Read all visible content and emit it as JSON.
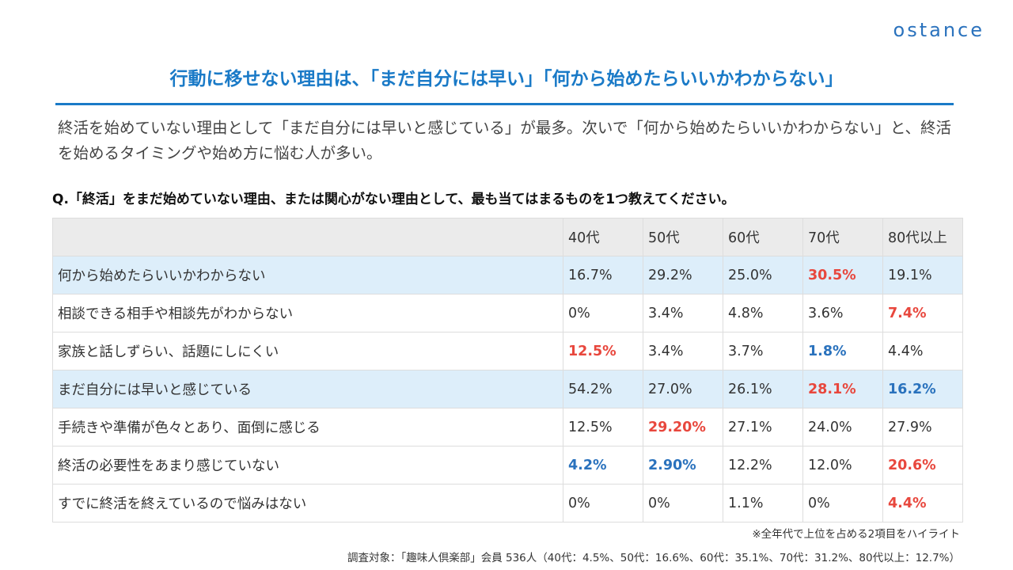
{
  "logo": "ostance",
  "title": "行動に移せない理由は、「まだ自分には早い」「何から始めたらいいかわからない」",
  "lead": "終活を始めていない理由として「まだ自分には早いと感じている」が最多。次いで「何から始めたらいいかわからない」と、終活を始めるタイミングや始め方に悩む人が多い。",
  "question": "Q.「終活」をまだ始めていない理由、または関心がない理由として、最も当てはまるものを1つ教えてください。",
  "table": {
    "headers": [
      "40代",
      "50代",
      "60代",
      "70代",
      "80代以上"
    ],
    "rows": [
      {
        "label": "何から始めたらいいかわからない",
        "cells": [
          "16.7%",
          "29.2%",
          "25.0%",
          "30.5%",
          "19.1%"
        ],
        "highlight": true,
        "cell_colors": [
          null,
          null,
          null,
          "#e8473d",
          null
        ]
      },
      {
        "label": "相談できる相手や相談先がわからない",
        "cells": [
          "0%",
          "3.4%",
          "4.8%",
          "3.6%",
          "7.4%"
        ],
        "highlight": false,
        "cell_colors": [
          null,
          null,
          null,
          null,
          "#e8473d"
        ]
      },
      {
        "label": "家族と話しずらい、話題にしにくい",
        "cells": [
          "12.5%",
          "3.4%",
          "3.7%",
          "1.8%",
          "4.4%"
        ],
        "highlight": false,
        "cell_colors": [
          "#e8473d",
          null,
          null,
          "#2a72bd",
          null
        ]
      },
      {
        "label": "まだ自分には早いと感じている",
        "cells": [
          "54.2%",
          "27.0%",
          "26.1%",
          "28.1%",
          "16.2%"
        ],
        "highlight": true,
        "cell_colors": [
          null,
          null,
          null,
          "#e8473d",
          "#2a72bd"
        ]
      },
      {
        "label": "手続きや準備が色々とあり、面倒に感じる",
        "cells": [
          "12.5%",
          "29.20%",
          "27.1%",
          "24.0%",
          "27.9%"
        ],
        "highlight": false,
        "cell_colors": [
          null,
          "#e8473d",
          null,
          null,
          null
        ]
      },
      {
        "label": "終活の必要性をあまり感じていない",
        "cells": [
          "4.2%",
          "2.90%",
          "12.2%",
          "12.0%",
          "20.6%"
        ],
        "highlight": false,
        "cell_colors": [
          "#2a72bd",
          "#2a72bd",
          null,
          null,
          "#e8473d"
        ]
      },
      {
        "label": "すでに終活を終えているので悩みはない",
        "cells": [
          "0%",
          "0%",
          "1.1%",
          "0%",
          "4.4%"
        ],
        "highlight": false,
        "cell_colors": [
          null,
          null,
          null,
          null,
          "#e8473d"
        ]
      }
    ]
  },
  "notes": [
    "※全年代で上位を占める2項目をハイライト",
    "調査対象：「趣味人倶楽部」会員 536人（40代：4.5%、50代：16.6%、60代：35.1%、70代：31.2%、80代以上：12.7%）"
  ]
}
